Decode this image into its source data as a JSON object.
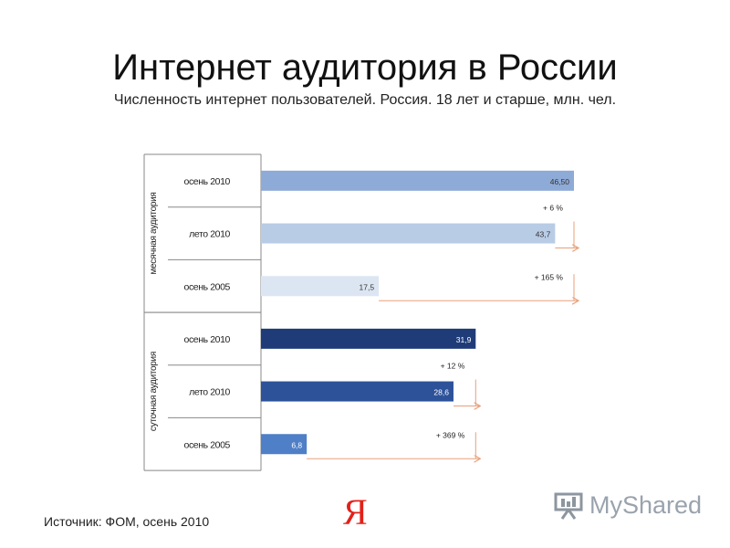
{
  "page": {
    "title": "Интернет аудитория в России",
    "subtitle": "Численность интернет пользователей. Россия. 18 лет и старше, млн. чел.",
    "source": "Источник: ФОМ, осень 2010",
    "yandex_logo": "Я",
    "brand": "MyShared"
  },
  "chart_data": {
    "type": "bar",
    "orientation": "horizontal",
    "title": "",
    "xlim": [
      0,
      46.5
    ],
    "groups": [
      {
        "label": "месячная аудитория",
        "rows": [
          {
            "category": "осень 2010",
            "value": 46.5,
            "value_label": "46,50",
            "color": "#8eaad6"
          },
          {
            "category": "лето 2010",
            "value": 43.7,
            "value_label": "43,7",
            "color": "#b9cce6"
          },
          {
            "category": "осень 2005",
            "value": 17.5,
            "value_label": "17,5",
            "color": "#dce6f2"
          }
        ],
        "annotations": [
          "+ 6 %",
          "+ 165 %"
        ]
      },
      {
        "label": "суточная аудитория",
        "rows": [
          {
            "category": "осень 2010",
            "value": 31.9,
            "value_label": "31,9",
            "color": "#1f3c78"
          },
          {
            "category": "лето 2010",
            "value": 28.6,
            "value_label": "28,6",
            "color": "#2d529a"
          },
          {
            "category": "осень 2005",
            "value": 6.8,
            "value_label": "6,8",
            "color": "#4f7fc6"
          }
        ],
        "annotations": [
          "+ 12 %",
          "+ 369 %"
        ]
      }
    ],
    "arrow_color": "#e8a07a",
    "grid": false,
    "legend": "none"
  }
}
